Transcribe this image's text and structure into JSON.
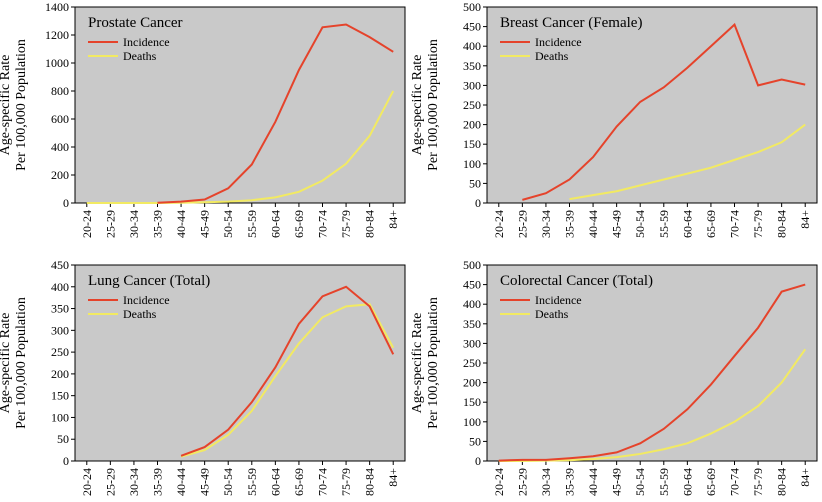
{
  "chart_data": [
    {
      "type": "line",
      "title": "Prostate Cancer",
      "ylabel": [
        "Age-specific Rate",
        "Per 100,000 Population"
      ],
      "categories": [
        "20-24",
        "25-29",
        "30-34",
        "35-39",
        "40-44",
        "45-49",
        "50-54",
        "55-59",
        "60-64",
        "65-69",
        "70-74",
        "75-79",
        "80-84",
        "84+"
      ],
      "ylim": [
        0,
        1400
      ],
      "yticks": [
        0,
        200,
        400,
        600,
        800,
        1000,
        1200,
        1400
      ],
      "series": [
        {
          "name": "Incidence",
          "color": "#e5432b",
          "values": [
            null,
            null,
            null,
            2,
            10,
            25,
            105,
            275,
            580,
            950,
            1255,
            1275,
            1185,
            1080
          ]
        },
        {
          "name": "Deaths",
          "color": "#f2ea62",
          "values": [
            0,
            0,
            0,
            0,
            2,
            5,
            10,
            20,
            40,
            80,
            160,
            280,
            480,
            800
          ]
        }
      ]
    },
    {
      "type": "line",
      "title": "Breast Cancer (Female)",
      "ylabel": [
        "Age-specific Rate",
        "Per 100,000 Population"
      ],
      "categories": [
        "20-24",
        "25-29",
        "30-34",
        "35-39",
        "40-44",
        "45-49",
        "50-54",
        "55-59",
        "60-64",
        "65-69",
        "70-74",
        "75-79",
        "80-84",
        "84+"
      ],
      "ylim": [
        0,
        500
      ],
      "yticks": [
        0,
        50,
        100,
        150,
        200,
        250,
        300,
        350,
        400,
        450,
        500
      ],
      "series": [
        {
          "name": "Incidence",
          "color": "#e5432b",
          "values": [
            null,
            8,
            25,
            60,
            117,
            195,
            258,
            295,
            345,
            400,
            455,
            300,
            315,
            302
          ]
        },
        {
          "name": "Deaths",
          "color": "#f2ea62",
          "values": [
            null,
            null,
            null,
            10,
            20,
            30,
            45,
            60,
            75,
            90,
            110,
            130,
            155,
            200
          ]
        }
      ]
    },
    {
      "type": "line",
      "title": "Lung Cancer (Total)",
      "ylabel": [
        "Age-specific Rate",
        "Per 100,000 Population"
      ],
      "categories": [
        "20-24",
        "25-29",
        "30-34",
        "35-39",
        "40-44",
        "45-49",
        "50-54",
        "55-59",
        "60-64",
        "65-69",
        "70-74",
        "75-79",
        "80-84",
        "84+"
      ],
      "ylim": [
        0,
        450
      ],
      "yticks": [
        0,
        50,
        100,
        150,
        200,
        250,
        300,
        350,
        400,
        450
      ],
      "series": [
        {
          "name": "Incidence",
          "color": "#e5432b",
          "values": [
            null,
            null,
            null,
            null,
            12,
            32,
            72,
            135,
            215,
            315,
            378,
            400,
            355,
            245
          ]
        },
        {
          "name": "Deaths",
          "color": "#f2ea62",
          "values": [
            null,
            null,
            null,
            null,
            10,
            25,
            60,
            115,
            195,
            270,
            330,
            355,
            360,
            260
          ]
        }
      ]
    },
    {
      "type": "line",
      "title": "Colorectal Cancer (Total)",
      "ylabel": [
        "Age-specific Rate",
        "Per 100,000 Population"
      ],
      "categories": [
        "20-24",
        "25-29",
        "30-34",
        "35-39",
        "40-44",
        "45-49",
        "50-54",
        "55-59",
        "60-64",
        "65-69",
        "70-74",
        "75-79",
        "80-84",
        "84+"
      ],
      "ylim": [
        0,
        500
      ],
      "yticks": [
        0,
        50,
        100,
        150,
        200,
        250,
        300,
        350,
        400,
        450,
        500
      ],
      "series": [
        {
          "name": "Incidence",
          "color": "#e5432b",
          "values": [
            1,
            3,
            3,
            7,
            12,
            22,
            45,
            82,
            132,
            195,
            268,
            340,
            432,
            450
          ]
        },
        {
          "name": "Deaths",
          "color": "#f2ea62",
          "values": [
            0,
            0,
            1,
            2,
            5,
            10,
            18,
            30,
            45,
            70,
            100,
            140,
            200,
            285
          ]
        }
      ]
    }
  ]
}
